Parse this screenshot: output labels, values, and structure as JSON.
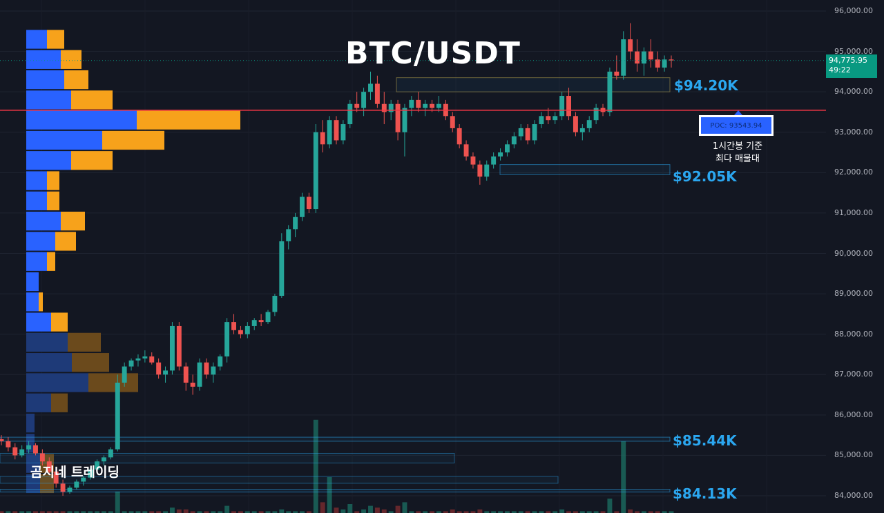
{
  "title": "BTC/USDT",
  "watermark": "곰지네 트레이딩",
  "price_tag": {
    "price": "94,775.95",
    "timer": "49:22"
  },
  "poc": {
    "label": "POC: 93543.94",
    "note_line1": "1시간봉 기준",
    "note_line2": "최다 매물대"
  },
  "levels": [
    {
      "label": "$94.20K",
      "zone": [
        94000,
        94350
      ]
    },
    {
      "label": "$92.05K",
      "zone": [
        91950,
        92200
      ]
    },
    {
      "label": "$85.44K",
      "zone": [
        85350,
        85450
      ]
    },
    {
      "label": "$84.13K",
      "zone": [
        84100,
        84160
      ]
    }
  ],
  "colors": {
    "up": "#26a69a",
    "down": "#ef5350",
    "poc_line": "#f23645",
    "level": "#2ba7f0",
    "buy_volume": "#2962ff",
    "sell_volume": "#f7a21b"
  },
  "chart_data": {
    "type": "candlestick",
    "y_axis": {
      "min": 84000,
      "max": 96000,
      "step": 1000
    },
    "y_ticks": [
      "96,000.00",
      "95,000.00",
      "94,000.00",
      "93,000.00",
      "92,000.00",
      "91,000.00",
      "90,000.00",
      "89,000.00",
      "88,000.00",
      "87,000.00",
      "86,000.00",
      "85,000.00",
      "84,000.00"
    ],
    "poc_price": 93543.94,
    "last_price": 94775.95,
    "candles": [
      [
        85400,
        85500,
        85250,
        85350
      ],
      [
        85350,
        85450,
        85100,
        85200
      ],
      [
        85200,
        85300,
        84900,
        85000
      ],
      [
        85000,
        85250,
        84950,
        85150
      ],
      [
        85150,
        85350,
        85050,
        85250
      ],
      [
        85250,
        85300,
        85000,
        85050
      ],
      [
        85050,
        85150,
        84750,
        84850
      ],
      [
        84850,
        84950,
        84550,
        84600
      ],
      [
        84600,
        84700,
        84200,
        84300
      ],
      [
        84300,
        84400,
        84000,
        84100
      ],
      [
        84100,
        84250,
        84050,
        84200
      ],
      [
        84200,
        84400,
        84150,
        84350
      ],
      [
        84350,
        84500,
        84250,
        84450
      ],
      [
        84450,
        84700,
        84400,
        84650
      ],
      [
        84650,
        84900,
        84600,
        84850
      ],
      [
        84850,
        85000,
        84750,
        84950
      ],
      [
        84950,
        85200,
        84900,
        85150
      ],
      [
        85150,
        87000,
        85100,
        86800
      ],
      [
        86800,
        87300,
        86700,
        87200
      ],
      [
        87200,
        87400,
        87100,
        87350
      ],
      [
        87350,
        87500,
        87200,
        87400
      ],
      [
        87400,
        87600,
        87300,
        87450
      ],
      [
        87450,
        87550,
        87250,
        87300
      ],
      [
        87300,
        87400,
        86900,
        87000
      ],
      [
        87000,
        87200,
        86800,
        87100
      ],
      [
        87100,
        88300,
        87000,
        88200
      ],
      [
        88200,
        88300,
        87100,
        87200
      ],
      [
        87200,
        87300,
        86600,
        86800
      ],
      [
        86800,
        87000,
        86500,
        86700
      ],
      [
        86700,
        87400,
        86600,
        87300
      ],
      [
        87300,
        87400,
        86900,
        87000
      ],
      [
        87000,
        87300,
        86800,
        87200
      ],
      [
        87200,
        87500,
        87100,
        87450
      ],
      [
        87450,
        88400,
        87300,
        88300
      ],
      [
        88300,
        88500,
        88000,
        88100
      ],
      [
        88100,
        88200,
        87900,
        88000
      ],
      [
        88000,
        88300,
        87900,
        88200
      ],
      [
        88200,
        88400,
        88100,
        88350
      ],
      [
        88350,
        88500,
        88200,
        88300
      ],
      [
        88300,
        88600,
        88250,
        88550
      ],
      [
        88550,
        89000,
        88450,
        88950
      ],
      [
        88950,
        90500,
        88900,
        90300
      ],
      [
        90300,
        90700,
        90100,
        90600
      ],
      [
        90600,
        91000,
        90400,
        90900
      ],
      [
        90900,
        91500,
        90800,
        91400
      ],
      [
        91400,
        91500,
        91000,
        91100
      ],
      [
        91100,
        93200,
        91000,
        93000
      ],
      [
        93000,
        93300,
        92500,
        92700
      ],
      [
        92700,
        93400,
        92600,
        93300
      ],
      [
        93300,
        93400,
        92700,
        92800
      ],
      [
        92800,
        93300,
        92700,
        93200
      ],
      [
        93200,
        93800,
        93100,
        93700
      ],
      [
        93700,
        94000,
        93500,
        93600
      ],
      [
        93600,
        94100,
        93400,
        94000
      ],
      [
        94000,
        94500,
        93800,
        94200
      ],
      [
        94200,
        94400,
        93600,
        93700
      ],
      [
        93700,
        94000,
        93200,
        93500
      ],
      [
        93500,
        93800,
        93300,
        93700
      ],
      [
        93700,
        93800,
        92800,
        93000
      ],
      [
        93000,
        93700,
        92400,
        93600
      ],
      [
        93600,
        93900,
        93400,
        93800
      ],
      [
        93800,
        94000,
        93500,
        93600
      ],
      [
        93600,
        93800,
        93400,
        93700
      ],
      [
        93700,
        93800,
        93500,
        93600
      ],
      [
        93600,
        93900,
        93500,
        93700
      ],
      [
        93700,
        93800,
        93300,
        93400
      ],
      [
        93400,
        93500,
        93000,
        93100
      ],
      [
        93100,
        93200,
        92600,
        92700
      ],
      [
        92700,
        92800,
        92300,
        92400
      ],
      [
        92400,
        92500,
        92100,
        92200
      ],
      [
        92200,
        92300,
        91700,
        91900
      ],
      [
        91900,
        92300,
        91800,
        92200
      ],
      [
        92200,
        92500,
        92100,
        92400
      ],
      [
        92400,
        92600,
        92300,
        92500
      ],
      [
        92500,
        92800,
        92400,
        92700
      ],
      [
        92700,
        93000,
        92600,
        92900
      ],
      [
        92900,
        93200,
        92800,
        93100
      ],
      [
        93100,
        93200,
        92700,
        92800
      ],
      [
        92800,
        93300,
        92700,
        93200
      ],
      [
        93200,
        93500,
        93100,
        93400
      ],
      [
        93400,
        93600,
        93200,
        93300
      ],
      [
        93300,
        93500,
        93200,
        93400
      ],
      [
        93400,
        94000,
        93300,
        93900
      ],
      [
        93900,
        94100,
        93300,
        93400
      ],
      [
        93400,
        93500,
        92900,
        93000
      ],
      [
        93000,
        93200,
        92800,
        93100
      ],
      [
        93100,
        93400,
        93000,
        93300
      ],
      [
        93300,
        93700,
        93200,
        93600
      ],
      [
        93600,
        93700,
        93400,
        93500
      ],
      [
        93500,
        94600,
        93400,
        94500
      ],
      [
        94500,
        94900,
        94300,
        94400
      ],
      [
        94400,
        95500,
        94300,
        95300
      ],
      [
        95300,
        95700,
        94800,
        95000
      ],
      [
        95000,
        95300,
        94500,
        94700
      ],
      [
        94700,
        95100,
        94400,
        95000
      ],
      [
        95000,
        95300,
        94600,
        94800
      ],
      [
        94800,
        95000,
        94500,
        94600
      ],
      [
        94600,
        94900,
        94500,
        94800
      ],
      [
        94800,
        94900,
        94600,
        94776
      ]
    ],
    "volumes": [
      [
        1,
        "down"
      ],
      [
        1,
        "up"
      ],
      [
        1,
        "down"
      ],
      [
        1,
        "up"
      ],
      [
        1,
        "up"
      ],
      [
        1,
        "down"
      ],
      [
        1,
        "down"
      ],
      [
        1,
        "down"
      ],
      [
        1,
        "down"
      ],
      [
        1,
        "down"
      ],
      [
        1,
        "up"
      ],
      [
        1,
        "up"
      ],
      [
        1,
        "up"
      ],
      [
        1,
        "up"
      ],
      [
        1,
        "up"
      ],
      [
        1,
        "up"
      ],
      [
        1,
        "up"
      ],
      [
        12,
        "up"
      ],
      [
        1,
        "up"
      ],
      [
        1,
        "up"
      ],
      [
        1,
        "up"
      ],
      [
        1,
        "up"
      ],
      [
        1,
        "down"
      ],
      [
        1,
        "down"
      ],
      [
        1,
        "up"
      ],
      [
        3,
        "up"
      ],
      [
        2,
        "down"
      ],
      [
        2,
        "down"
      ],
      [
        1,
        "down"
      ],
      [
        1,
        "up"
      ],
      [
        1,
        "down"
      ],
      [
        1,
        "up"
      ],
      [
        1,
        "up"
      ],
      [
        4,
        "up"
      ],
      [
        1,
        "down"
      ],
      [
        1,
        "down"
      ],
      [
        1,
        "up"
      ],
      [
        1,
        "up"
      ],
      [
        1,
        "down"
      ],
      [
        1,
        "up"
      ],
      [
        1,
        "up"
      ],
      [
        2,
        "up"
      ],
      [
        1,
        "up"
      ],
      [
        1,
        "up"
      ],
      [
        1,
        "up"
      ],
      [
        1,
        "down"
      ],
      [
        52,
        "up"
      ],
      [
        6,
        "down"
      ],
      [
        20,
        "up"
      ],
      [
        3,
        "down"
      ],
      [
        2,
        "up"
      ],
      [
        5,
        "up"
      ],
      [
        1,
        "down"
      ],
      [
        2,
        "up"
      ],
      [
        4,
        "up"
      ],
      [
        3,
        "down"
      ],
      [
        2,
        "down"
      ],
      [
        1,
        "up"
      ],
      [
        4,
        "down"
      ],
      [
        6,
        "up"
      ],
      [
        1,
        "up"
      ],
      [
        1,
        "down"
      ],
      [
        1,
        "up"
      ],
      [
        1,
        "down"
      ],
      [
        1,
        "up"
      ],
      [
        1,
        "down"
      ],
      [
        2,
        "down"
      ],
      [
        1,
        "down"
      ],
      [
        1,
        "down"
      ],
      [
        1,
        "down"
      ],
      [
        2,
        "down"
      ],
      [
        1,
        "up"
      ],
      [
        1,
        "up"
      ],
      [
        1,
        "up"
      ],
      [
        1,
        "up"
      ],
      [
        1,
        "up"
      ],
      [
        1,
        "up"
      ],
      [
        1,
        "down"
      ],
      [
        1,
        "up"
      ],
      [
        1,
        "up"
      ],
      [
        1,
        "down"
      ],
      [
        1,
        "up"
      ],
      [
        2,
        "up"
      ],
      [
        1,
        "down"
      ],
      [
        1,
        "down"
      ],
      [
        1,
        "up"
      ],
      [
        1,
        "up"
      ],
      [
        1,
        "up"
      ],
      [
        1,
        "down"
      ],
      [
        8,
        "up"
      ],
      [
        1,
        "down"
      ],
      [
        40,
        "up"
      ],
      [
        2,
        "down"
      ],
      [
        1,
        "down"
      ],
      [
        1,
        "up"
      ],
      [
        1,
        "down"
      ],
      [
        1,
        "down"
      ],
      [
        1,
        "up"
      ],
      [
        1,
        "up"
      ]
    ],
    "volume_profile": [
      {
        "price": 95300,
        "buy": 30,
        "sell": 25,
        "in_range": true
      },
      {
        "price": 94800,
        "buy": 50,
        "sell": 30,
        "in_range": true
      },
      {
        "price": 94300,
        "buy": 55,
        "sell": 35,
        "in_range": true
      },
      {
        "price": 93800,
        "buy": 65,
        "sell": 60,
        "in_range": true
      },
      {
        "price": 93300,
        "buy": 160,
        "sell": 150,
        "in_range": true
      },
      {
        "price": 92800,
        "buy": 110,
        "sell": 90,
        "in_range": true
      },
      {
        "price": 92300,
        "buy": 65,
        "sell": 60,
        "in_range": true
      },
      {
        "price": 91800,
        "buy": 30,
        "sell": 18,
        "in_range": true
      },
      {
        "price": 91300,
        "buy": 30,
        "sell": 18,
        "in_range": true
      },
      {
        "price": 90800,
        "buy": 50,
        "sell": 35,
        "in_range": true
      },
      {
        "price": 90300,
        "buy": 42,
        "sell": 30,
        "in_range": true
      },
      {
        "price": 89800,
        "buy": 30,
        "sell": 12,
        "in_range": true
      },
      {
        "price": 89300,
        "buy": 18,
        "sell": 0,
        "in_range": true
      },
      {
        "price": 88800,
        "buy": 18,
        "sell": 6,
        "in_range": true
      },
      {
        "price": 88300,
        "buy": 36,
        "sell": 24,
        "in_range": true
      },
      {
        "price": 87800,
        "buy": 60,
        "sell": 48,
        "in_range": false
      },
      {
        "price": 87300,
        "buy": 66,
        "sell": 54,
        "in_range": false
      },
      {
        "price": 86800,
        "buy": 90,
        "sell": 72,
        "in_range": false
      },
      {
        "price": 86300,
        "buy": 36,
        "sell": 24,
        "in_range": false
      },
      {
        "price": 85800,
        "buy": 12,
        "sell": 0,
        "in_range": false
      },
      {
        "price": 85300,
        "buy": 12,
        "sell": 0,
        "in_range": false
      },
      {
        "price": 84800,
        "buy": 20,
        "sell": 20,
        "in_range": false
      },
      {
        "price": 84300,
        "buy": 20,
        "sell": 20,
        "in_range": false
      }
    ]
  }
}
